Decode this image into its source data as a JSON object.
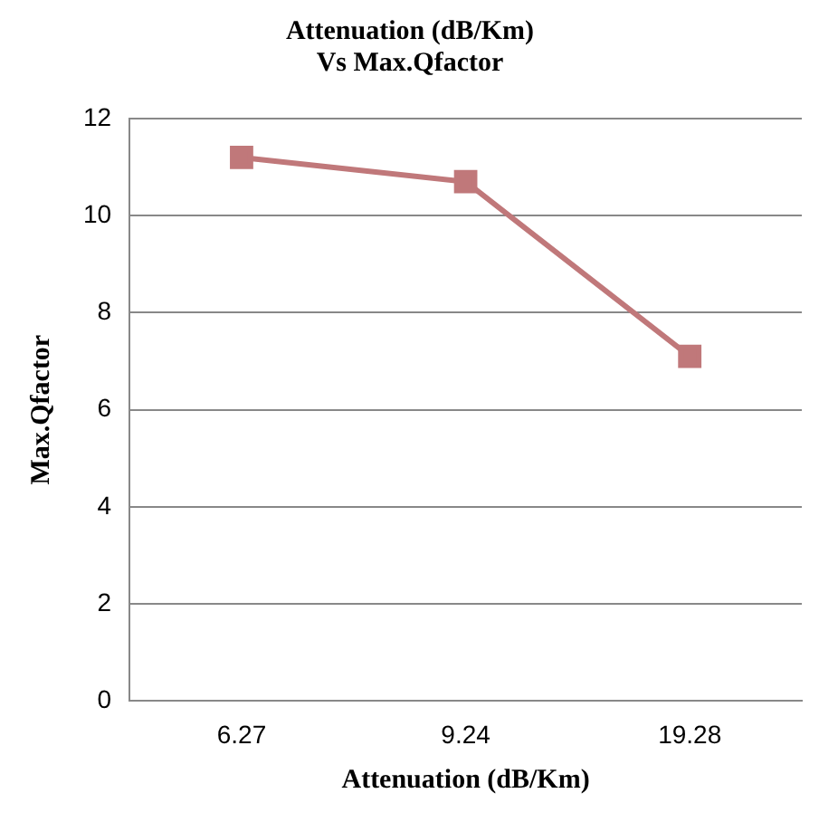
{
  "chart_data": {
    "type": "line",
    "title": "Attenuation (dB/Km)\nVs Max.Qfactor",
    "xlabel": "Attenuation (dB/Km)",
    "ylabel": "Max.Qfactor",
    "categories": [
      "6.27",
      "9.24",
      "19.28"
    ],
    "series": [
      {
        "color": "#c0787a",
        "values": [
          11.2,
          10.7,
          7.1
        ]
      }
    ],
    "ylim": [
      0,
      12
    ],
    "yticks": [
      0,
      2,
      4,
      6,
      8,
      10,
      12
    ],
    "grid": "y",
    "legend": false,
    "marker": "square",
    "line_style": "solid"
  }
}
